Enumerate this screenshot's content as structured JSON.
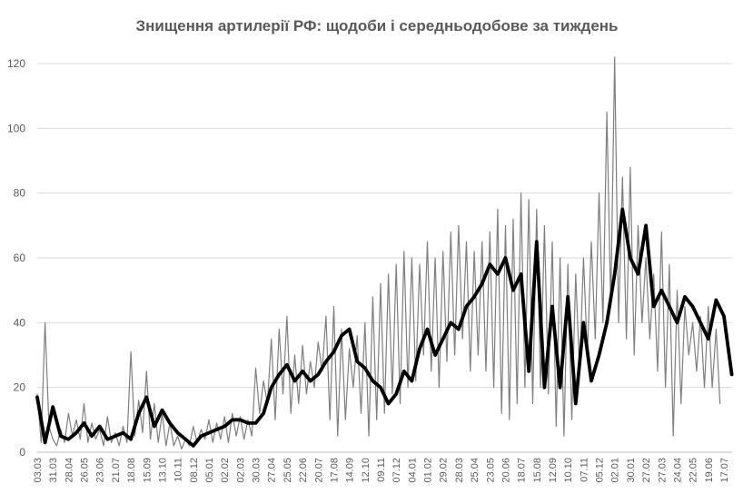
{
  "chart_data": {
    "type": "line",
    "title": "Знищення артилерії РФ: щодоби і середньодобове за тиждень",
    "xlabel": "",
    "ylabel": "",
    "ylim": [
      0,
      120
    ],
    "yticks": [
      0,
      20,
      40,
      60,
      80,
      100,
      120
    ],
    "grid": true,
    "legend": "none",
    "x_tick_labels": [
      "03.03",
      "31.03",
      "28.04",
      "26.05",
      "23.06",
      "21.07",
      "18.08",
      "15.09",
      "13.10",
      "10.11",
      "08.12",
      "05.01",
      "02.02",
      "02.03",
      "30.03",
      "27.04",
      "25.05",
      "22.06",
      "20.07",
      "17.08",
      "14.09",
      "12.10",
      "09.11",
      "07.12",
      "04.01",
      "01.02",
      "29.02",
      "28.03",
      "25.04",
      "23.05",
      "20.06",
      "18.07",
      "15.08",
      "12.09",
      "10.10",
      "07.11",
      "05.12",
      "02.01",
      "30.01",
      "27.02",
      "27.03",
      "24.04",
      "22.05",
      "19.06",
      "17.07"
    ],
    "x_tick_label_dates": [
      "2022-03-03",
      "2022-03-31",
      "2022-04-28",
      "2022-05-26",
      "2022-06-23",
      "2022-07-21",
      "2022-08-18",
      "2022-09-15",
      "2022-10-13",
      "2022-11-10",
      "2022-12-08",
      "2023-01-05",
      "2023-02-02",
      "2023-03-02",
      "2023-03-30",
      "2023-04-27",
      "2023-05-25",
      "2023-06-22",
      "2023-07-20",
      "2023-08-17",
      "2023-09-14",
      "2023-10-12",
      "2023-11-09",
      "2023-12-07",
      "2024-01-04",
      "2024-02-01",
      "2024-02-29",
      "2024-03-28",
      "2024-04-25",
      "2024-05-23",
      "2024-06-20",
      "2024-07-18",
      "2024-08-15",
      "2024-09-12",
      "2024-10-10",
      "2024-11-07",
      "2024-12-05",
      "2025-01-02",
      "2025-01-30",
      "2025-02-27",
      "2025-03-27",
      "2025-04-24",
      "2025-05-22",
      "2025-06-19",
      "2025-07-17"
    ],
    "series": [
      {
        "color": "#7f7f7f",
        "point_dates": [
          "2022-03-03",
          "2022-03-10",
          "2022-03-17",
          "2022-03-24",
          "2022-03-31",
          "2022-04-07",
          "2022-04-14",
          "2022-04-21",
          "2022-04-28",
          "2022-05-05",
          "2022-05-12",
          "2022-05-19",
          "2022-05-26",
          "2022-06-02",
          "2022-06-09",
          "2022-06-16",
          "2022-06-23",
          "2022-06-30",
          "2022-07-07",
          "2022-07-14",
          "2022-07-21",
          "2022-07-28",
          "2022-08-04",
          "2022-08-11",
          "2022-08-18",
          "2022-08-25",
          "2022-09-01",
          "2022-09-08",
          "2022-09-15",
          "2022-09-22",
          "2022-09-29",
          "2022-10-06",
          "2022-10-13",
          "2022-10-20",
          "2022-10-27",
          "2022-11-03",
          "2022-11-10",
          "2022-11-17",
          "2022-11-24",
          "2022-12-01",
          "2022-12-08",
          "2022-12-15",
          "2022-12-22",
          "2022-12-29",
          "2023-01-05",
          "2023-01-12",
          "2023-01-19",
          "2023-01-26",
          "2023-02-02",
          "2023-02-09",
          "2023-02-16",
          "2023-02-23",
          "2023-03-02",
          "2023-03-09",
          "2023-03-16",
          "2023-03-23",
          "2023-03-30",
          "2023-04-06",
          "2023-04-13",
          "2023-04-20",
          "2023-04-27",
          "2023-05-04",
          "2023-05-11",
          "2023-05-18",
          "2023-05-25",
          "2023-06-01",
          "2023-06-08",
          "2023-06-15",
          "2023-06-22",
          "2023-06-29",
          "2023-07-06",
          "2023-07-13",
          "2023-07-20",
          "2023-07-27",
          "2023-08-03",
          "2023-08-10",
          "2023-08-17",
          "2023-08-24",
          "2023-08-31",
          "2023-09-07",
          "2023-09-14",
          "2023-09-21",
          "2023-09-28",
          "2023-10-05",
          "2023-10-12",
          "2023-10-19",
          "2023-10-26",
          "2023-11-02",
          "2023-11-09",
          "2023-11-16",
          "2023-11-23",
          "2023-11-30",
          "2023-12-07",
          "2023-12-14",
          "2023-12-21",
          "2023-12-28",
          "2024-01-04",
          "2024-01-11",
          "2024-01-18",
          "2024-01-25",
          "2024-02-01",
          "2024-02-08",
          "2024-02-15",
          "2024-02-22",
          "2024-02-29",
          "2024-03-07",
          "2024-03-14",
          "2024-03-21",
          "2024-03-28",
          "2024-04-04",
          "2024-04-11",
          "2024-04-18",
          "2024-04-25",
          "2024-05-02",
          "2024-05-09",
          "2024-05-16",
          "2024-05-23",
          "2024-05-30",
          "2024-06-06",
          "2024-06-13",
          "2024-06-20",
          "2024-06-27",
          "2024-07-04",
          "2024-07-11",
          "2024-07-18",
          "2024-07-25",
          "2024-08-01",
          "2024-08-08",
          "2024-08-15",
          "2024-08-22",
          "2024-08-29",
          "2024-09-05",
          "2024-09-12",
          "2024-09-19",
          "2024-09-26",
          "2024-10-03",
          "2024-10-10",
          "2024-10-17",
          "2024-10-24",
          "2024-10-31",
          "2024-11-07",
          "2024-11-14",
          "2024-11-21",
          "2024-11-28",
          "2024-12-05",
          "2024-12-12",
          "2024-12-19",
          "2024-12-26",
          "2025-01-02",
          "2025-01-09",
          "2025-01-16",
          "2025-01-23",
          "2025-01-30",
          "2025-02-06",
          "2025-02-13",
          "2025-02-20",
          "2025-02-27",
          "2025-03-06",
          "2025-03-13",
          "2025-03-20",
          "2025-03-27",
          "2025-04-03",
          "2025-04-10",
          "2025-04-17",
          "2025-04-24",
          "2025-05-01",
          "2025-05-08",
          "2025-05-15",
          "2025-05-22",
          "2025-05-29",
          "2025-06-05",
          "2025-06-12",
          "2025-06-19",
          "2025-06-26",
          "2025-07-03",
          "2025-07-10",
          "2025-07-17",
          "2025-07-24",
          "2025-07-31"
        ],
        "values": [
          18,
          3,
          40,
          8,
          4,
          2,
          7,
          3,
          12,
          5,
          10,
          4,
          15,
          3,
          9,
          4,
          7,
          2,
          11,
          3,
          6,
          2,
          8,
          3,
          31,
          5,
          16,
          6,
          25,
          4,
          15,
          3,
          12,
          2,
          9,
          2,
          5,
          1,
          4,
          2,
          8,
          3,
          7,
          4,
          10,
          3,
          9,
          4,
          11,
          3,
          12,
          5,
          11,
          4,
          10,
          5,
          26,
          12,
          22,
          15,
          35,
          10,
          38,
          18,
          42,
          12,
          30,
          15,
          33,
          18,
          28,
          20,
          34,
          25,
          42,
          10,
          45,
          5,
          38,
          10,
          32,
          20,
          36,
          12,
          40,
          5,
          48,
          10,
          52,
          12,
          55,
          18,
          58,
          15,
          62,
          20,
          60,
          22,
          58,
          30,
          65,
          25,
          60,
          20,
          62,
          28,
          68,
          30,
          70,
          35,
          65,
          25,
          62,
          30,
          65,
          25,
          68,
          20,
          75,
          12,
          70,
          10,
          72,
          15,
          80,
          20,
          78,
          15,
          75,
          20,
          70,
          18,
          65,
          8,
          60,
          5,
          58,
          10,
          55,
          25,
          60,
          30,
          65,
          35,
          80,
          40,
          105,
          45,
          122,
          40,
          85,
          35,
          88,
          30,
          70,
          40,
          60,
          35,
          55,
          25,
          68,
          20,
          58,
          5,
          50,
          15,
          45,
          30,
          40,
          25,
          42,
          20,
          45,
          20,
          38,
          15
        ],
        "label": ""
      },
      {
        "color": "#000000",
        "point_dates": [
          "2022-03-03",
          "2022-03-17",
          "2022-03-31",
          "2022-04-14",
          "2022-04-28",
          "2022-05-12",
          "2022-05-26",
          "2022-06-09",
          "2022-06-23",
          "2022-07-07",
          "2022-07-21",
          "2022-08-04",
          "2022-08-18",
          "2022-09-01",
          "2022-09-15",
          "2022-09-29",
          "2022-10-13",
          "2022-10-27",
          "2022-11-10",
          "2022-11-24",
          "2022-12-08",
          "2022-12-22",
          "2023-01-05",
          "2023-01-19",
          "2023-02-02",
          "2023-02-16",
          "2023-03-02",
          "2023-03-16",
          "2023-03-30",
          "2023-04-13",
          "2023-04-27",
          "2023-05-11",
          "2023-05-25",
          "2023-06-08",
          "2023-06-22",
          "2023-07-06",
          "2023-07-20",
          "2023-08-03",
          "2023-08-17",
          "2023-08-31",
          "2023-09-14",
          "2023-09-28",
          "2023-10-12",
          "2023-10-26",
          "2023-11-09",
          "2023-11-23",
          "2023-12-07",
          "2023-12-21",
          "2024-01-04",
          "2024-01-18",
          "2024-02-01",
          "2024-02-15",
          "2024-02-29",
          "2024-03-14",
          "2024-03-28",
          "2024-04-11",
          "2024-04-25",
          "2024-05-09",
          "2024-05-23",
          "2024-06-06",
          "2024-06-20",
          "2024-07-04",
          "2024-07-18",
          "2024-08-01",
          "2024-08-15",
          "2024-08-29",
          "2024-09-12",
          "2024-09-26",
          "2024-10-10",
          "2024-10-24",
          "2024-11-07",
          "2024-11-21",
          "2024-12-05",
          "2024-12-19",
          "2025-01-02",
          "2025-01-16",
          "2025-01-30",
          "2025-02-13",
          "2025-02-27",
          "2025-03-13",
          "2025-03-27",
          "2025-04-10",
          "2025-04-24",
          "2025-05-08",
          "2025-05-22",
          "2025-06-05",
          "2025-06-19",
          "2025-07-03",
          "2025-07-17",
          "2025-07-31"
        ],
        "values": [
          17,
          3,
          14,
          5,
          4,
          6,
          9,
          5,
          8,
          4,
          5,
          6,
          4,
          12,
          17,
          8,
          13,
          9,
          6,
          4,
          2,
          5,
          6,
          7,
          8,
          10,
          10,
          9,
          9,
          12,
          20,
          24,
          27,
          22,
          25,
          22,
          24,
          28,
          31,
          36,
          38,
          28,
          26,
          22,
          20,
          15,
          18,
          25,
          22,
          32,
          38,
          30,
          35,
          40,
          38,
          45,
          48,
          52,
          58,
          55,
          60,
          50,
          55,
          25,
          65,
          20,
          45,
          20,
          48,
          15,
          40,
          22,
          30,
          40,
          55,
          75,
          60,
          55,
          70,
          45,
          50,
          45,
          40,
          48,
          45,
          40,
          35,
          47,
          42,
          24
        ],
        "label": ""
      }
    ]
  }
}
